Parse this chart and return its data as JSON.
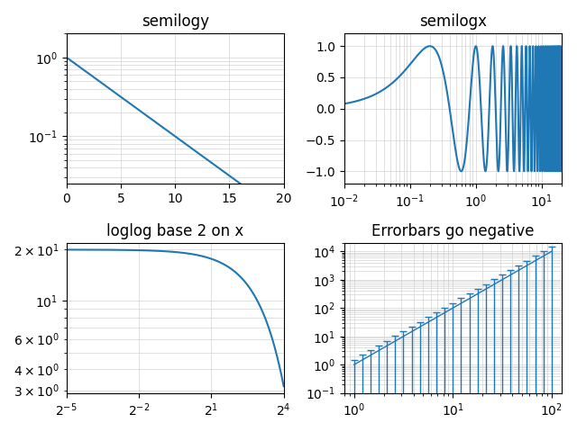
{
  "title1": "semilogy",
  "title2": "semilogx",
  "title3": "loglog base 2 on x",
  "title4": "Errorbars go negative",
  "line_color": "#1f77b4",
  "figsize": [
    6.4,
    4.8
  ],
  "dpi": 100
}
